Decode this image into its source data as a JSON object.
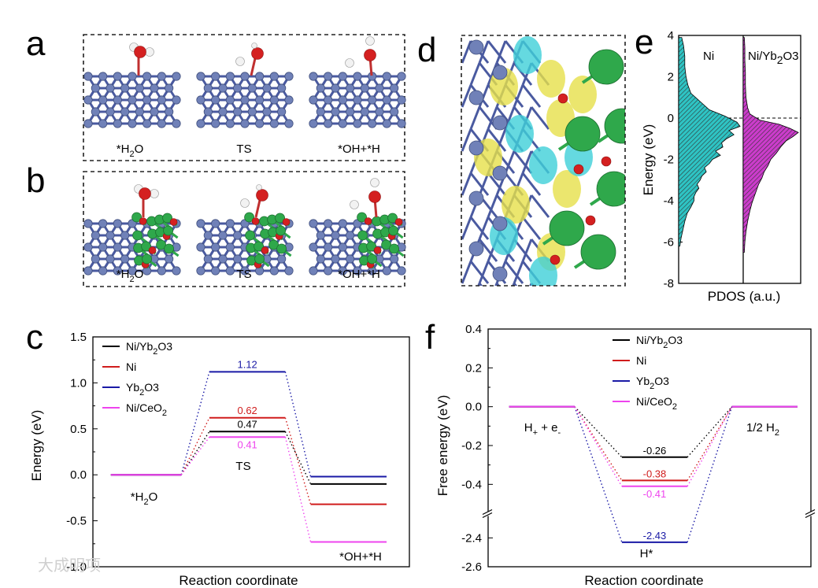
{
  "panels": {
    "a": {
      "label": "a",
      "captions": [
        [
          "*H",
          "2",
          "O"
        ],
        [
          "TS",
          "",
          ""
        ],
        [
          "*OH+*H",
          "",
          ""
        ]
      ]
    },
    "b": {
      "label": "b",
      "captions": [
        [
          "*H",
          "2",
          "O"
        ],
        [
          "TS",
          "",
          ""
        ],
        [
          "*OH+*H",
          "",
          ""
        ]
      ]
    },
    "d": {
      "label": "d"
    },
    "e": {
      "label": "e"
    },
    "c": {
      "label": "c"
    },
    "f": {
      "label": "f"
    }
  },
  "watermark": "大成明项",
  "colors": {
    "NiYb2O3": "#000000",
    "Ni": "#d01c1c",
    "Yb2O3": "#1a1aa6",
    "NiCeO2": "#ee44ee",
    "ni_fill": "#2ec4c4",
    "niyb_fill": "#cc3ccc"
  },
  "chart_data": [
    {
      "id": "e",
      "type": "area",
      "title": "",
      "xlabel": "PDOS (a.u.)",
      "ylabel": "Energy (eV)",
      "ylim": [
        -8,
        4
      ],
      "yticks": [
        4,
        2,
        0,
        -2,
        -4,
        -6,
        -8
      ],
      "grid": false,
      "fermi_level": 0,
      "series": [
        {
          "name": "Ni",
          "label_parts": [
            "Ni",
            "",
            ""
          ],
          "color_key": "ni_fill",
          "energies": [
            3.9,
            3.5,
            3.0,
            2.5,
            2.0,
            1.6,
            1.2,
            0.8,
            0.4,
            0.1,
            -0.2,
            -0.4,
            -0.6,
            -0.8,
            -1.0,
            -1.2,
            -1.4,
            -1.6,
            -1.8,
            -2.0,
            -2.2,
            -2.4,
            -2.6,
            -2.8,
            -3.0,
            -3.2,
            -3.4,
            -3.6,
            -3.8,
            -4.0,
            -4.3,
            -4.6,
            -5.0,
            -5.4,
            -5.8,
            -6.2
          ],
          "dos": [
            0.05,
            0.08,
            0.1,
            0.1,
            0.12,
            0.15,
            0.2,
            0.35,
            0.5,
            0.75,
            0.95,
            1.0,
            0.82,
            0.9,
            0.78,
            0.7,
            0.72,
            0.6,
            0.68,
            0.55,
            0.5,
            0.42,
            0.45,
            0.38,
            0.35,
            0.3,
            0.33,
            0.28,
            0.25,
            0.25,
            0.2,
            0.14,
            0.1,
            0.07,
            0.04,
            0.02
          ]
        },
        {
          "name": "Ni/Yb2O3",
          "label_parts": [
            "Ni/Yb",
            "2",
            "O3"
          ],
          "color_key": "niyb_fill",
          "energies": [
            3.9,
            3.4,
            2.8,
            2.2,
            1.6,
            1.0,
            0.5,
            0.2,
            -0.1,
            -0.3,
            -0.5,
            -0.7,
            -0.9,
            -1.1,
            -1.4,
            -1.7,
            -2.0,
            -2.3,
            -2.6,
            -2.9,
            -3.2,
            -3.5,
            -3.8,
            -4.1,
            -4.5,
            -5.0,
            -5.5,
            -6.0,
            -6.5
          ],
          "dos": [
            0.02,
            0.03,
            0.03,
            0.04,
            0.04,
            0.05,
            0.08,
            0.12,
            0.3,
            0.65,
            0.85,
            1.0,
            0.9,
            0.78,
            0.68,
            0.6,
            0.5,
            0.45,
            0.38,
            0.34,
            0.28,
            0.24,
            0.2,
            0.16,
            0.12,
            0.08,
            0.05,
            0.03,
            0.02
          ]
        }
      ]
    },
    {
      "id": "c",
      "type": "line",
      "title": "",
      "xlabel": "Reaction coordinate",
      "ylabel": "Energy (eV)",
      "ylim": [
        -1.0,
        1.5
      ],
      "yticks": [
        1.5,
        1.0,
        0.5,
        0.0,
        -0.5,
        -1.0
      ],
      "ytick_labels": [
        "1.5",
        "1.0",
        "0.5",
        "0.0",
        "-0.5",
        "-1.0"
      ],
      "grid": false,
      "legend_position": "top-left",
      "states": [
        {
          "label_parts": [
            "*H",
            "2",
            "O"
          ],
          "x": [
            0.05,
            0.3
          ]
        },
        {
          "label_parts": [
            "TS",
            "",
            ""
          ],
          "x": [
            0.4,
            0.67
          ]
        },
        {
          "label_parts": [
            "*OH+*H",
            "",
            ""
          ],
          "x": [
            0.76,
            1.03
          ]
        }
      ],
      "series": [
        {
          "name": "Ni/Yb2O3",
          "label_parts": [
            "Ni/Yb",
            "2",
            "O3"
          ],
          "color_key": "NiYb2O3",
          "values": [
            0.0,
            0.47,
            -0.1
          ],
          "ts_label": "0.47"
        },
        {
          "name": "Ni",
          "label_parts": [
            "Ni",
            "",
            ""
          ],
          "color_key": "Ni",
          "values": [
            0.0,
            0.62,
            -0.32
          ],
          "ts_label": "0.62"
        },
        {
          "name": "Yb2O3",
          "label_parts": [
            "Yb",
            "2",
            "O3"
          ],
          "color_key": "Yb2O3",
          "values": [
            0.0,
            1.12,
            -0.02
          ],
          "ts_label": "1.12"
        },
        {
          "name": "Ni/CeO2",
          "label_parts": [
            "Ni/CeO",
            "2",
            ""
          ],
          "color_key": "NiCeO2",
          "values": [
            0.0,
            0.41,
            -0.73
          ],
          "ts_label": "0.41"
        }
      ]
    },
    {
      "id": "f",
      "type": "line",
      "title": "",
      "xlabel": "Reaction coordinate",
      "ylabel": "Free energy (eV)",
      "axis_break": true,
      "upper_ylim": [
        -0.5,
        0.4
      ],
      "upper_yticks": [
        0.4,
        0.2,
        0.0,
        -0.2,
        -0.4
      ],
      "upper_ytick_labels": [
        "0.4",
        "0.2",
        "0.0",
        "-0.2",
        "-0.4"
      ],
      "lower_ylim": [
        -2.6,
        -2.3
      ],
      "lower_yticks": [
        -2.4,
        -2.6
      ],
      "lower_ytick_labels": [
        "-2.4",
        "-2.6"
      ],
      "grid": false,
      "legend_position": "top-center",
      "states": [
        {
          "label_parts": [
            "H",
            "+",
            " + e",
            "-"
          ],
          "x": [
            0.05,
            0.3
          ]
        },
        {
          "label_parts": [
            "H*"
          ],
          "x": [
            0.48,
            0.73
          ]
        },
        {
          "label_parts": [
            "1/2 H",
            "2"
          ],
          "x": [
            0.9,
            1.15
          ]
        }
      ],
      "series": [
        {
          "name": "Ni/Yb2O3",
          "label_parts": [
            "Ni/Yb",
            "2",
            "O3"
          ],
          "color_key": "NiYb2O3",
          "values": [
            0.0,
            -0.26,
            0.0
          ],
          "mid_label": "-0.26"
        },
        {
          "name": "Ni",
          "label_parts": [
            "Ni",
            "",
            ""
          ],
          "color_key": "Ni",
          "values": [
            0.0,
            -0.38,
            0.0
          ],
          "mid_label": "-0.38"
        },
        {
          "name": "Yb2O3",
          "label_parts": [
            "Yb",
            "2",
            "O3"
          ],
          "color_key": "Yb2O3",
          "values": [
            0.0,
            -2.43,
            0.0
          ],
          "mid_label": "-2.43"
        },
        {
          "name": "Ni/CeO2",
          "label_parts": [
            "Ni/CeO",
            "2",
            ""
          ],
          "color_key": "NiCeO2",
          "values": [
            0.0,
            -0.41,
            0.0
          ],
          "mid_label": "-0.41"
        }
      ]
    }
  ]
}
